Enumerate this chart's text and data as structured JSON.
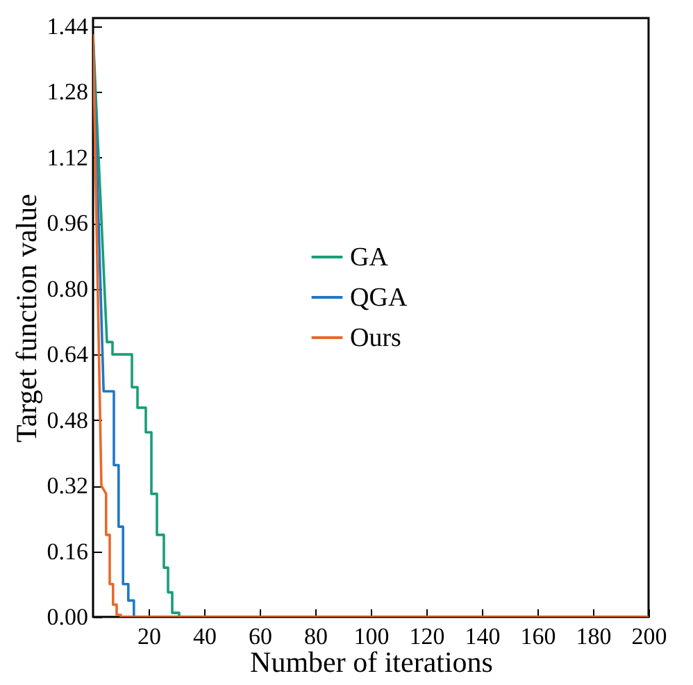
{
  "chart_data": {
    "type": "line",
    "xlabel": "Number of iterations",
    "ylabel": "Target function value",
    "xlim": [
      0,
      200
    ],
    "xticks": [
      20,
      40,
      60,
      80,
      100,
      120,
      140,
      160,
      180,
      200
    ],
    "ylim": [
      0,
      1.46
    ],
    "yticks": [
      {
        "value": 0,
        "label": "0.00"
      },
      0.16,
      0.32,
      0.48,
      0.64,
      {
        "value": 0.8,
        "label": "0.80"
      },
      0.96,
      1.12,
      1.28,
      1.44
    ],
    "grid": false,
    "legend": "center",
    "marker": "none",
    "line_style": "solid",
    "series": [
      {
        "name": "GA",
        "color": "#1a9e77",
        "x": [
          0,
          5,
          7,
          7,
          14,
          14,
          16,
          16,
          19,
          19,
          21,
          21,
          23,
          23,
          25.5,
          25.5,
          27,
          27,
          28.5,
          28.5,
          31,
          31,
          200
        ],
        "values": [
          1.42,
          0.67,
          0.67,
          0.64,
          0.64,
          0.56,
          0.56,
          0.51,
          0.51,
          0.45,
          0.45,
          0.3,
          0.3,
          0.2,
          0.2,
          0.12,
          0.12,
          0.06,
          0.06,
          0.01,
          0.01,
          0,
          0
        ]
      },
      {
        "name": "QGA",
        "color": "#1f78c8",
        "x": [
          0,
          3.8,
          7.5,
          7.5,
          9.2,
          9.2,
          10.8,
          10.8,
          12.7,
          12.7,
          14.7,
          14.7,
          200
        ],
        "values": [
          1.42,
          0.55,
          0.55,
          0.37,
          0.37,
          0.22,
          0.22,
          0.08,
          0.08,
          0.04,
          0.04,
          0,
          0
        ]
      },
      {
        "name": "Ours",
        "color": "#e8692a",
        "x": [
          0,
          3,
          4.7,
          4.7,
          6,
          6,
          7.2,
          7.2,
          8.5,
          8.5,
          10,
          10,
          200
        ],
        "values": [
          1.42,
          0.32,
          0.3,
          0.2,
          0.2,
          0.08,
          0.08,
          0.03,
          0.03,
          0.005,
          0.005,
          0,
          0
        ]
      }
    ]
  }
}
